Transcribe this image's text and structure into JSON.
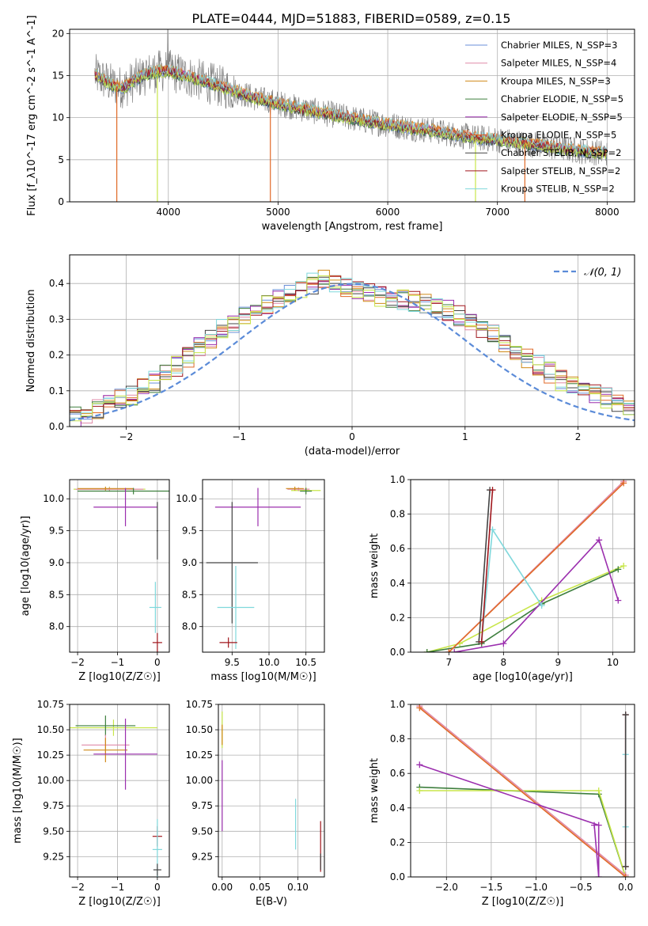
{
  "figure": {
    "title": "PLATE=0444, MJD=51883, FIBERID=0589, z=0.15"
  },
  "colors": {
    "chabrier_miles": "#6a8fd8",
    "salpeter_miles": "#e08aa8",
    "kroupa_miles": "#d08a18",
    "chabrier_elodie": "#3e7f3e",
    "salpeter_elodie": "#9b2fae",
    "kroupa_elodie": "#e06a28",
    "chabrier_stelib": "#444444",
    "salpeter_stelib": "#a0161c",
    "kroupa_stelib": "#7fd8dc",
    "extra_model": "#c8e64a",
    "data": "#808080",
    "normal": "#5b8bd8",
    "grid": "#b0b0b0"
  },
  "chart_data": [
    {
      "id": "spectrum",
      "type": "line",
      "xlabel": "wavelength [Angstrom, rest frame]",
      "ylabel": "Flux [f_λ10^-17 erg cm^-2 s^-1 A^-1]",
      "xlim": [
        3100,
        8250
      ],
      "ylim": [
        0,
        20.5
      ],
      "xticks": [
        4000,
        5000,
        6000,
        7000,
        8000
      ],
      "yticks": [
        0,
        5,
        10,
        15,
        20
      ],
      "legend": {
        "placement": "upper-right",
        "entries": [
          {
            "name": "Chabrier MILES, N_SSP=3",
            "color": "#6a8fd8"
          },
          {
            "name": "Salpeter MILES, N_SSP=4",
            "color": "#e08aa8"
          },
          {
            "name": "Kroupa MILES, N_SSP=3",
            "color": "#d08a18"
          },
          {
            "name": "Chabrier ELODIE, N_SSP=5",
            "color": "#3e7f3e"
          },
          {
            "name": "Salpeter ELODIE, N_SSP=5",
            "color": "#9b2fae"
          },
          {
            "name": "Kroupa ELODIE, N_SSP=5",
            "color": "#e06a28"
          },
          {
            "name": "Chabrier STELIB, N_SSP=2",
            "color": "#444444"
          },
          {
            "name": "Salpeter STELIB, N_SSP=2",
            "color": "#a0161c"
          },
          {
            "name": "Kroupa STELIB, N_SSP=2",
            "color": "#7fd8dc"
          }
        ]
      },
      "continuum": {
        "x": [
          3300,
          3400,
          3500,
          3600,
          3700,
          3800,
          3900,
          4000,
          4200,
          4400,
          4600,
          4800,
          5000,
          5200,
          5400,
          5600,
          5800,
          6000,
          6200,
          6400,
          6600,
          6800,
          7000,
          7200,
          7400,
          7600,
          7800,
          8000
        ],
        "y": [
          15.3,
          14.6,
          13.8,
          13.6,
          14.5,
          15.2,
          15.5,
          15.6,
          14.8,
          14.0,
          13.2,
          12.3,
          11.7,
          11.1,
          10.6,
          10.1,
          9.6,
          9.2,
          8.8,
          8.5,
          8.0,
          7.6,
          7.4,
          7.0,
          6.7,
          6.3,
          6.0,
          5.8
        ]
      },
      "drops": [
        {
          "x": 3530,
          "color": "#e06a28"
        },
        {
          "x": 3900,
          "color": "#c8e64a"
        },
        {
          "x": 4930,
          "color": "#e06a28"
        },
        {
          "x": 6800,
          "color": "#c8e64a"
        },
        {
          "x": 7250,
          "color": "#e06a28"
        }
      ]
    },
    {
      "id": "residuals",
      "type": "line",
      "xlabel": "(data-model)/error",
      "ylabel": "Normed distribution",
      "xlim": [
        -2.5,
        2.5
      ],
      "ylim": [
        0,
        0.48
      ],
      "xticks": [
        -2,
        -1,
        0,
        1,
        2
      ],
      "yticks": [
        0.0,
        0.1,
        0.2,
        0.3,
        0.4
      ],
      "legend": {
        "placement": "upper-right",
        "entries": [
          {
            "name": "𝒩(0, 1)",
            "color": "#5b8bd8"
          }
        ]
      },
      "bin_width": 0.1,
      "hist_base": [
        0.028,
        0.035,
        0.048,
        0.06,
        0.075,
        0.09,
        0.105,
        0.125,
        0.15,
        0.17,
        0.195,
        0.22,
        0.245,
        0.27,
        0.29,
        0.305,
        0.32,
        0.34,
        0.355,
        0.37,
        0.385,
        0.4,
        0.41,
        0.405,
        0.39,
        0.375,
        0.37,
        0.365,
        0.36,
        0.355,
        0.35,
        0.345,
        0.335,
        0.325,
        0.31,
        0.295,
        0.275,
        0.255,
        0.235,
        0.21,
        0.19,
        0.17,
        0.15,
        0.13,
        0.115,
        0.1,
        0.09,
        0.08,
        0.07,
        0.06
      ]
    },
    {
      "id": "age-vs-Z",
      "type": "scatter",
      "xlabel": "Z [log10(Z/Z☉)]",
      "ylabel": "age  [log10(age/yr)]",
      "xlim": [
        -2.2,
        0.3
      ],
      "ylim": [
        7.6,
        10.3
      ],
      "xticks": [
        -2,
        -1,
        0
      ],
      "yticks": [
        8.0,
        8.5,
        9.0,
        9.5,
        10.0
      ],
      "points": [
        {
          "x": -1.2,
          "y": 10.15,
          "xerr": 0.9,
          "yerr": 0.04,
          "color": "#c8e64a"
        },
        {
          "x": -1.2,
          "y": 10.15,
          "xerr": 0.85,
          "yerr": 0.03,
          "color": "#e08aa8"
        },
        {
          "x": -1.3,
          "y": 10.16,
          "xerr": 0.7,
          "yerr": 0.03,
          "color": "#d08a18"
        },
        {
          "x": -0.6,
          "y": 10.12,
          "xerr": 1.4,
          "yerr": 0.05,
          "color": "#3e7f3e"
        },
        {
          "x": -0.8,
          "y": 9.87,
          "xerr": 0.8,
          "yerr": 0.3,
          "color": "#9b2fae"
        },
        {
          "x": 0.0,
          "y": 9.5,
          "xerr": 0.02,
          "yerr": 0.45,
          "color": "#444444"
        },
        {
          "x": -0.05,
          "y": 8.3,
          "xerr": 0.15,
          "yerr": 0.4,
          "color": "#7fd8dc"
        },
        {
          "x": 0.0,
          "y": 7.75,
          "xerr": 0.12,
          "yerr": 0.15,
          "color": "#a0161c"
        }
      ]
    },
    {
      "id": "age-vs-mass",
      "type": "scatter",
      "xlabel": "mass [log10(M/M☉)]",
      "ylabel": "",
      "xlim": [
        9.1,
        10.75
      ],
      "ylim": [
        7.6,
        10.3
      ],
      "xticks": [
        9.5,
        10.0,
        10.5
      ],
      "yticks": [
        8.0,
        8.5,
        9.0,
        9.5,
        10.0
      ],
      "points": [
        {
          "x": 10.5,
          "y": 10.13,
          "xerr": 0.2,
          "yerr": 0.05,
          "color": "#c8e64a"
        },
        {
          "x": 10.4,
          "y": 10.15,
          "xerr": 0.15,
          "yerr": 0.03,
          "color": "#e08aa8"
        },
        {
          "x": 10.35,
          "y": 10.16,
          "xerr": 0.12,
          "yerr": 0.03,
          "color": "#d08a18"
        },
        {
          "x": 10.5,
          "y": 10.12,
          "xerr": 0.08,
          "yerr": 0.05,
          "color": "#3e7f3e"
        },
        {
          "x": 9.85,
          "y": 9.87,
          "xerr": 0.58,
          "yerr": 0.3,
          "color": "#9b2fae"
        },
        {
          "x": 9.5,
          "y": 9.0,
          "xerr": 0.35,
          "yerr": 0.95,
          "color": "#444444"
        },
        {
          "x": 9.55,
          "y": 8.3,
          "xerr": 0.25,
          "yerr": 0.65,
          "color": "#7fd8dc"
        },
        {
          "x": 9.45,
          "y": 7.75,
          "xerr": 0.12,
          "yerr": 0.08,
          "color": "#a0161c"
        }
      ]
    },
    {
      "id": "weight-vs-age",
      "type": "line",
      "xlabel": "age  [log10(age/yr)]",
      "ylabel": "mass weight",
      "xlim": [
        6.3,
        10.4
      ],
      "ylim": [
        0,
        1.0
      ],
      "xticks": [
        7,
        8,
        9,
        10
      ],
      "yticks": [
        0.0,
        0.2,
        0.4,
        0.6,
        0.8,
        1.0
      ],
      "series": [
        {
          "color": "#c8e64a",
          "x": [
            6.6,
            7.2,
            8.7,
            10.2
          ],
          "y": [
            0.0,
            0.05,
            0.3,
            0.5
          ]
        },
        {
          "color": "#3e7f3e",
          "x": [
            6.6,
            7.6,
            8.7,
            10.1
          ],
          "y": [
            0.0,
            0.05,
            0.28,
            0.48
          ]
        },
        {
          "color": "#e08aa8",
          "x": [
            7.0,
            10.2
          ],
          "y": [
            0.0,
            0.99
          ]
        },
        {
          "color": "#e06a28",
          "x": [
            7.0,
            10.2
          ],
          "y": [
            0.0,
            0.98
          ]
        },
        {
          "color": "#9b2fae",
          "x": [
            7.1,
            8.0,
            9.75,
            10.1
          ],
          "y": [
            0.0,
            0.05,
            0.65,
            0.3
          ]
        },
        {
          "color": "#7fd8dc",
          "x": [
            7.6,
            7.8,
            8.7
          ],
          "y": [
            0.06,
            0.71,
            0.27
          ]
        },
        {
          "color": "#444444",
          "x": [
            7.55,
            7.75
          ],
          "y": [
            0.06,
            0.94
          ]
        },
        {
          "color": "#a0161c",
          "x": [
            7.6,
            7.8
          ],
          "y": [
            0.06,
            0.94
          ]
        }
      ]
    },
    {
      "id": "mass-vs-Z",
      "type": "scatter",
      "xlabel": "Z [log10(Z/Z☉)]",
      "ylabel": "mass [log10(M/M☉)]",
      "xlim": [
        -2.2,
        0.3
      ],
      "ylim": [
        9.05,
        10.75
      ],
      "xticks": [
        -2,
        -1,
        0
      ],
      "yticks": [
        9.25,
        9.5,
        9.75,
        10.0,
        10.25,
        10.5,
        10.75
      ],
      "points": [
        {
          "x": -1.1,
          "y": 10.52,
          "xerr": 1.1,
          "yerr": 0.08,
          "color": "#c8e64a"
        },
        {
          "x": -1.3,
          "y": 10.54,
          "xerr": 0.75,
          "yerr": 0.1,
          "color": "#3e7f3e"
        },
        {
          "x": -1.3,
          "y": 10.35,
          "xerr": 0.6,
          "yerr": 0.1,
          "color": "#e08aa8"
        },
        {
          "x": -1.3,
          "y": 10.3,
          "xerr": 0.55,
          "yerr": 0.12,
          "color": "#d08a18"
        },
        {
          "x": -0.8,
          "y": 10.26,
          "xerr": 0.8,
          "yerr": 0.35,
          "color": "#9b2fae"
        },
        {
          "x": 0.0,
          "y": 9.45,
          "xerr": 0.12,
          "yerr": 0.1,
          "color": "#a0161c"
        },
        {
          "x": 0.0,
          "y": 9.32,
          "xerr": 0.12,
          "yerr": 0.3,
          "color": "#7fd8dc"
        },
        {
          "x": 0.0,
          "y": 9.12,
          "xerr": 0.1,
          "yerr": 0.06,
          "color": "#444444"
        }
      ]
    },
    {
      "id": "mass-vs-ebv",
      "type": "scatter",
      "xlabel": "E(B-V)",
      "ylabel": "",
      "xlim": [
        -0.005,
        0.135
      ],
      "ylim": [
        9.05,
        10.75
      ],
      "xticks": [
        0.0,
        0.05,
        0.1
      ],
      "yticks": [
        9.25,
        9.5,
        9.75,
        10.0,
        10.25,
        10.5,
        10.75
      ],
      "points": [
        {
          "x": 0.0,
          "y": 10.5,
          "xerr": 0.0,
          "yerr": 0.18,
          "color": "#c8e64a"
        },
        {
          "x": 0.0,
          "y": 10.45,
          "xerr": 0.0,
          "yerr": 0.1,
          "color": "#d08a18"
        },
        {
          "x": 0.0,
          "y": 9.85,
          "xerr": 0.0,
          "yerr": 0.35,
          "color": "#9b2fae"
        },
        {
          "x": 0.097,
          "y": 9.57,
          "xerr": 0.0,
          "yerr": 0.25,
          "color": "#7fd8dc"
        },
        {
          "x": 0.13,
          "y": 9.35,
          "xerr": 0.0,
          "yerr": 0.25,
          "color": "#a0161c"
        },
        {
          "x": 0.13,
          "y": 9.2,
          "xerr": 0.0,
          "yerr": 0.08,
          "color": "#444444"
        }
      ]
    },
    {
      "id": "weight-vs-Z",
      "type": "line",
      "xlabel": "Z [log10(Z/Z☉)]",
      "ylabel": "mass weight",
      "xlim": [
        -2.4,
        0.1
      ],
      "ylim": [
        0,
        1.0
      ],
      "xticks": [
        -2.0,
        -1.5,
        -1.0,
        -0.5,
        0.0
      ],
      "yticks": [
        0.0,
        0.2,
        0.4,
        0.6,
        0.8,
        1.0
      ],
      "series": [
        {
          "color": "#3e7f3e",
          "x": [
            -2.3,
            -0.3,
            0.0
          ],
          "y": [
            0.52,
            0.48,
            0.0
          ]
        },
        {
          "color": "#c8e64a",
          "x": [
            -2.3,
            -0.3,
            0.0
          ],
          "y": [
            0.5,
            0.5,
            0.0
          ]
        },
        {
          "color": "#e08aa8",
          "x": [
            -2.3,
            0.0
          ],
          "y": [
            0.99,
            0.01
          ]
        },
        {
          "color": "#e06a28",
          "x": [
            -2.3,
            0.0
          ],
          "y": [
            0.98,
            0.0
          ]
        },
        {
          "color": "#9b2fae",
          "x": [
            -2.3,
            -0.3,
            -0.3,
            -0.35
          ],
          "y": [
            0.65,
            0.3,
            0.0,
            0.3
          ]
        },
        {
          "color": "#7fd8dc",
          "x": [
            0.0,
            0.0
          ],
          "y": [
            0.71,
            0.29
          ]
        },
        {
          "color": "#a0161c",
          "x": [
            0.0,
            0.0
          ],
          "y": [
            0.94,
            0.06
          ]
        },
        {
          "color": "#444444",
          "x": [
            0.0,
            0.0
          ],
          "y": [
            0.94,
            0.06
          ]
        }
      ]
    }
  ]
}
